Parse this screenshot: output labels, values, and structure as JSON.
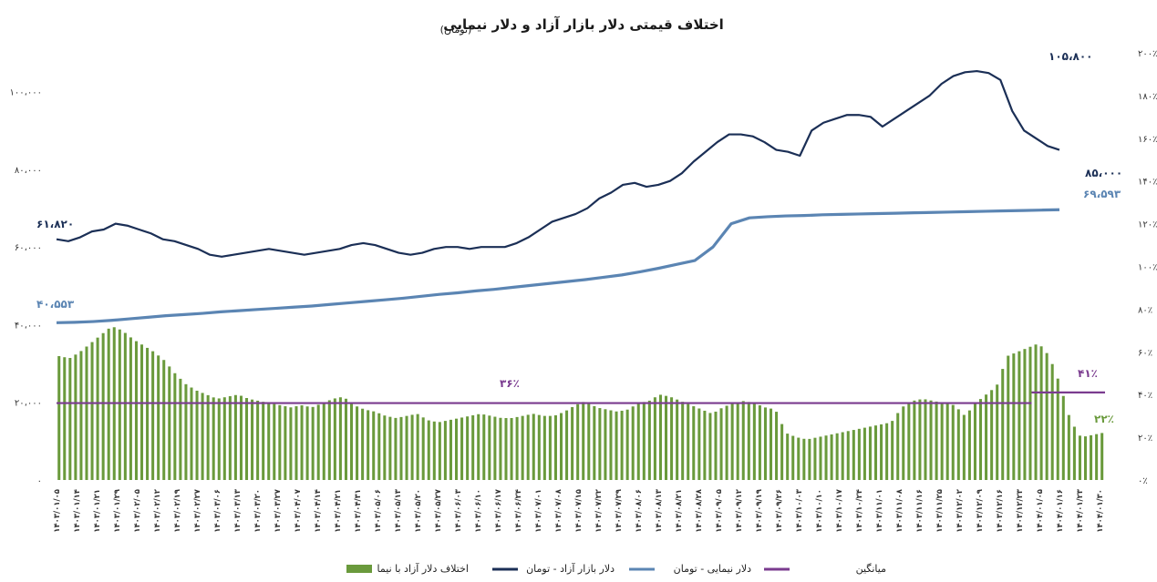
{
  "chart_data": {
    "type": "line+bar",
    "title": "اختلاف قیمتی دلار بازار آزاد و دلار نیمایی",
    "subtitle": "(تومان)",
    "y_left": {
      "lim": [
        0,
        110000
      ],
      "ticks": [
        "۰",
        "۲۰،۰۰۰",
        "۴۰،۰۰۰",
        "۶۰،۰۰۰",
        "۸۰،۰۰۰",
        "۱۰۰،۰۰۰"
      ],
      "tick_values": [
        0,
        20000,
        40000,
        60000,
        80000,
        100000
      ]
    },
    "y_right": {
      "lim": [
        0,
        200
      ],
      "ticks": [
        "۰٪",
        "۲۰٪",
        "۴۰٪",
        "۶۰٪",
        "۸۰٪",
        "۱۰۰٪",
        "۱۲۰٪",
        "۱۴۰٪",
        "۱۶۰٪",
        "۱۸۰٪",
        "۲۰۰٪"
      ],
      "tick_values": [
        0,
        20,
        40,
        60,
        80,
        100,
        120,
        140,
        160,
        180,
        200
      ]
    },
    "x_ticks": [
      "۱۴۰۳/۰۱/۰۵",
      "۱۴۰۳/۰۱/۱۴",
      "۱۴۰۳/۰۱/۲۱",
      "۱۴۰۳/۰۱/۲۹",
      "۱۴۰۳/۰۲/۰۵",
      "۱۴۰۳/۰۲/۱۲",
      "۱۴۰۳/۰۲/۱۹",
      "۱۴۰۳/۰۲/۲۷",
      "۱۴۰۳/۰۳/۰۶",
      "۱۴۰۳/۰۳/۱۳",
      "۱۴۰۳/۰۳/۲۰",
      "۱۴۰۳/۰۳/۲۷",
      "۱۴۰۳/۰۴/۰۷",
      "۱۴۰۳/۰۴/۱۴",
      "۱۴۰۳/۰۴/۲۱",
      "۱۴۰۳/۰۴/۳۱",
      "۱۴۰۳/۰۵/۰۶",
      "۱۴۰۳/۰۵/۱۳",
      "۱۴۰۳/۰۵/۲۰",
      "۱۴۰۳/۰۵/۲۷",
      "۱۴۰۳/۰۶/۰۳",
      "۱۴۰۳/۰۶/۱۰",
      "۱۴۰۳/۰۶/۱۷",
      "۱۴۰۳/۰۶/۲۴",
      "۱۴۰۳/۰۷/۰۱",
      "۱۴۰۳/۰۷/۰۸",
      "۱۴۰۳/۰۷/۱۵",
      "۱۴۰۳/۰۷/۲۲",
      "۱۴۰۳/۰۷/۲۹",
      "۱۴۰۳/۰۸/۰۶",
      "۱۴۰۳/۰۸/۱۳",
      "۱۴۰۳/۰۸/۲۱",
      "۱۴۰۳/۰۸/۲۸",
      "۱۴۰۳/۰۹/۰۵",
      "۱۴۰۳/۰۹/۱۲",
      "۱۴۰۳/۰۹/۱۹",
      "۱۴۰۳/۰۹/۲۶",
      "۱۴۰۳/۱۰/۰۳",
      "۱۴۰۳/۱۰/۱۰",
      "۱۴۰۳/۱۰/۱۷",
      "۱۴۰۳/۱۰/۲۴",
      "۱۴۰۳/۱۱/۰۱",
      "۱۴۰۳/۱۱/۰۸",
      "۱۴۰۳/۱۱/۱۶",
      "۱۴۰۳/۱۱/۲۵",
      "۱۴۰۳/۱۲/۰۲",
      "۱۴۰۳/۱۲/۰۹",
      "۱۴۰۳/۱۲/۱۶",
      "۱۴۰۳/۱۲/۲۳",
      "۱۴۰۴/۰۱/۰۵",
      "۱۴۰۴/۰۱/۱۶",
      "۱۴۰۴/۰۱/۲۳",
      "۱۴۰۴/۰۱/۳۰"
    ],
    "free_market": [
      62000,
      61500,
      62500,
      64000,
      64500,
      66000,
      65500,
      64500,
      63500,
      62000,
      61500,
      60500,
      59500,
      58000,
      57500,
      58000,
      58500,
      59000,
      59500,
      59000,
      58500,
      58000,
      58500,
      59000,
      59500,
      60500,
      61000,
      60500,
      59500,
      58500,
      58000,
      58500,
      59500,
      60000,
      60000,
      59500,
      60000,
      60000,
      60000,
      61000,
      62500,
      64500,
      66500,
      67500,
      68500,
      70000,
      72500,
      74000,
      76000,
      76500,
      75500,
      76000,
      77000,
      79000,
      82000,
      84500,
      87000,
      89000,
      89000,
      88500,
      87000,
      85000,
      84500,
      83500,
      90000,
      92000,
      93000,
      94000,
      94000,
      93500,
      91000,
      93000,
      95000,
      97000,
      99000,
      102000,
      104000,
      105000,
      105300,
      104800,
      103000,
      95000,
      90000,
      88000,
      86000,
      85000
    ],
    "nima": [
      40500,
      40600,
      40800,
      41100,
      41500,
      41900,
      42300,
      42600,
      42900,
      43300,
      43600,
      43900,
      44200,
      44500,
      44800,
      45200,
      45600,
      46000,
      46400,
      46800,
      47300,
      47800,
      48200,
      48700,
      49100,
      49600,
      50100,
      50600,
      51100,
      51600,
      52200,
      52800,
      53600,
      54500,
      55500,
      56500,
      60000,
      66000,
      67500,
      67800,
      68000,
      68100,
      68300,
      68400,
      68500,
      68600,
      68700,
      68800,
      68900,
      69000,
      69100,
      69200,
      69300,
      69400,
      69500,
      69593
    ],
    "spread_pct": [
      58,
      57,
      60,
      64,
      68,
      72,
      70,
      66,
      63,
      60,
      56,
      50,
      45,
      42,
      40,
      38,
      39,
      40,
      38,
      37,
      36,
      35,
      34,
      35,
      34,
      36,
      38,
      39,
      35,
      33,
      32,
      30,
      29,
      30,
      31,
      28,
      27,
      28,
      29,
      30,
      31,
      30,
      29,
      29,
      30,
      31,
      30,
      30,
      32,
      35,
      37,
      34,
      33,
      32,
      33,
      36,
      37,
      40,
      39,
      37,
      35,
      33,
      31,
      34,
      36,
      37,
      36,
      34,
      33,
      22,
      20,
      19,
      20,
      21,
      22,
      23,
      24,
      25,
      26,
      27,
      34,
      37,
      38,
      37,
      36,
      35,
      30,
      36,
      40,
      44,
      58,
      60,
      62,
      64,
      58,
      45,
      28,
      20,
      21,
      22
    ],
    "average_line": [
      {
        "from": 0,
        "to": 0.93,
        "value": 36
      },
      {
        "from": 0.93,
        "to": 1,
        "value": 41
      }
    ],
    "annotations": {
      "free_start": "۶۱،۸۲۰",
      "free_peak": "۱۰۵،۸۰۰",
      "free_end": "۸۵،۰۰۰",
      "nima_start": "۴۰،۵۵۳",
      "nima_end": "۶۹،۵۹۳",
      "avg_label": "۳۶٪",
      "avg2_label": "۴۱٪",
      "spread_end": "۲۲٪"
    },
    "legend": [
      {
        "label": "اختلاف دلار آزاد با نیما",
        "kind": "bar"
      },
      {
        "label": "دلار بازار آزاد - تومان",
        "kind": "line"
      },
      {
        "label": "دلار نیمایی - تومان",
        "kind": "line"
      },
      {
        "label": "میانگین",
        "kind": "line"
      }
    ],
    "colors": {
      "free_market": "#1b2f56",
      "nima": "#5b85b3",
      "bars": "#6a9a3c",
      "average": "#7a3b8f",
      "title": "#1a1a1a"
    },
    "grid": false,
    "legend_position": "bottom"
  }
}
